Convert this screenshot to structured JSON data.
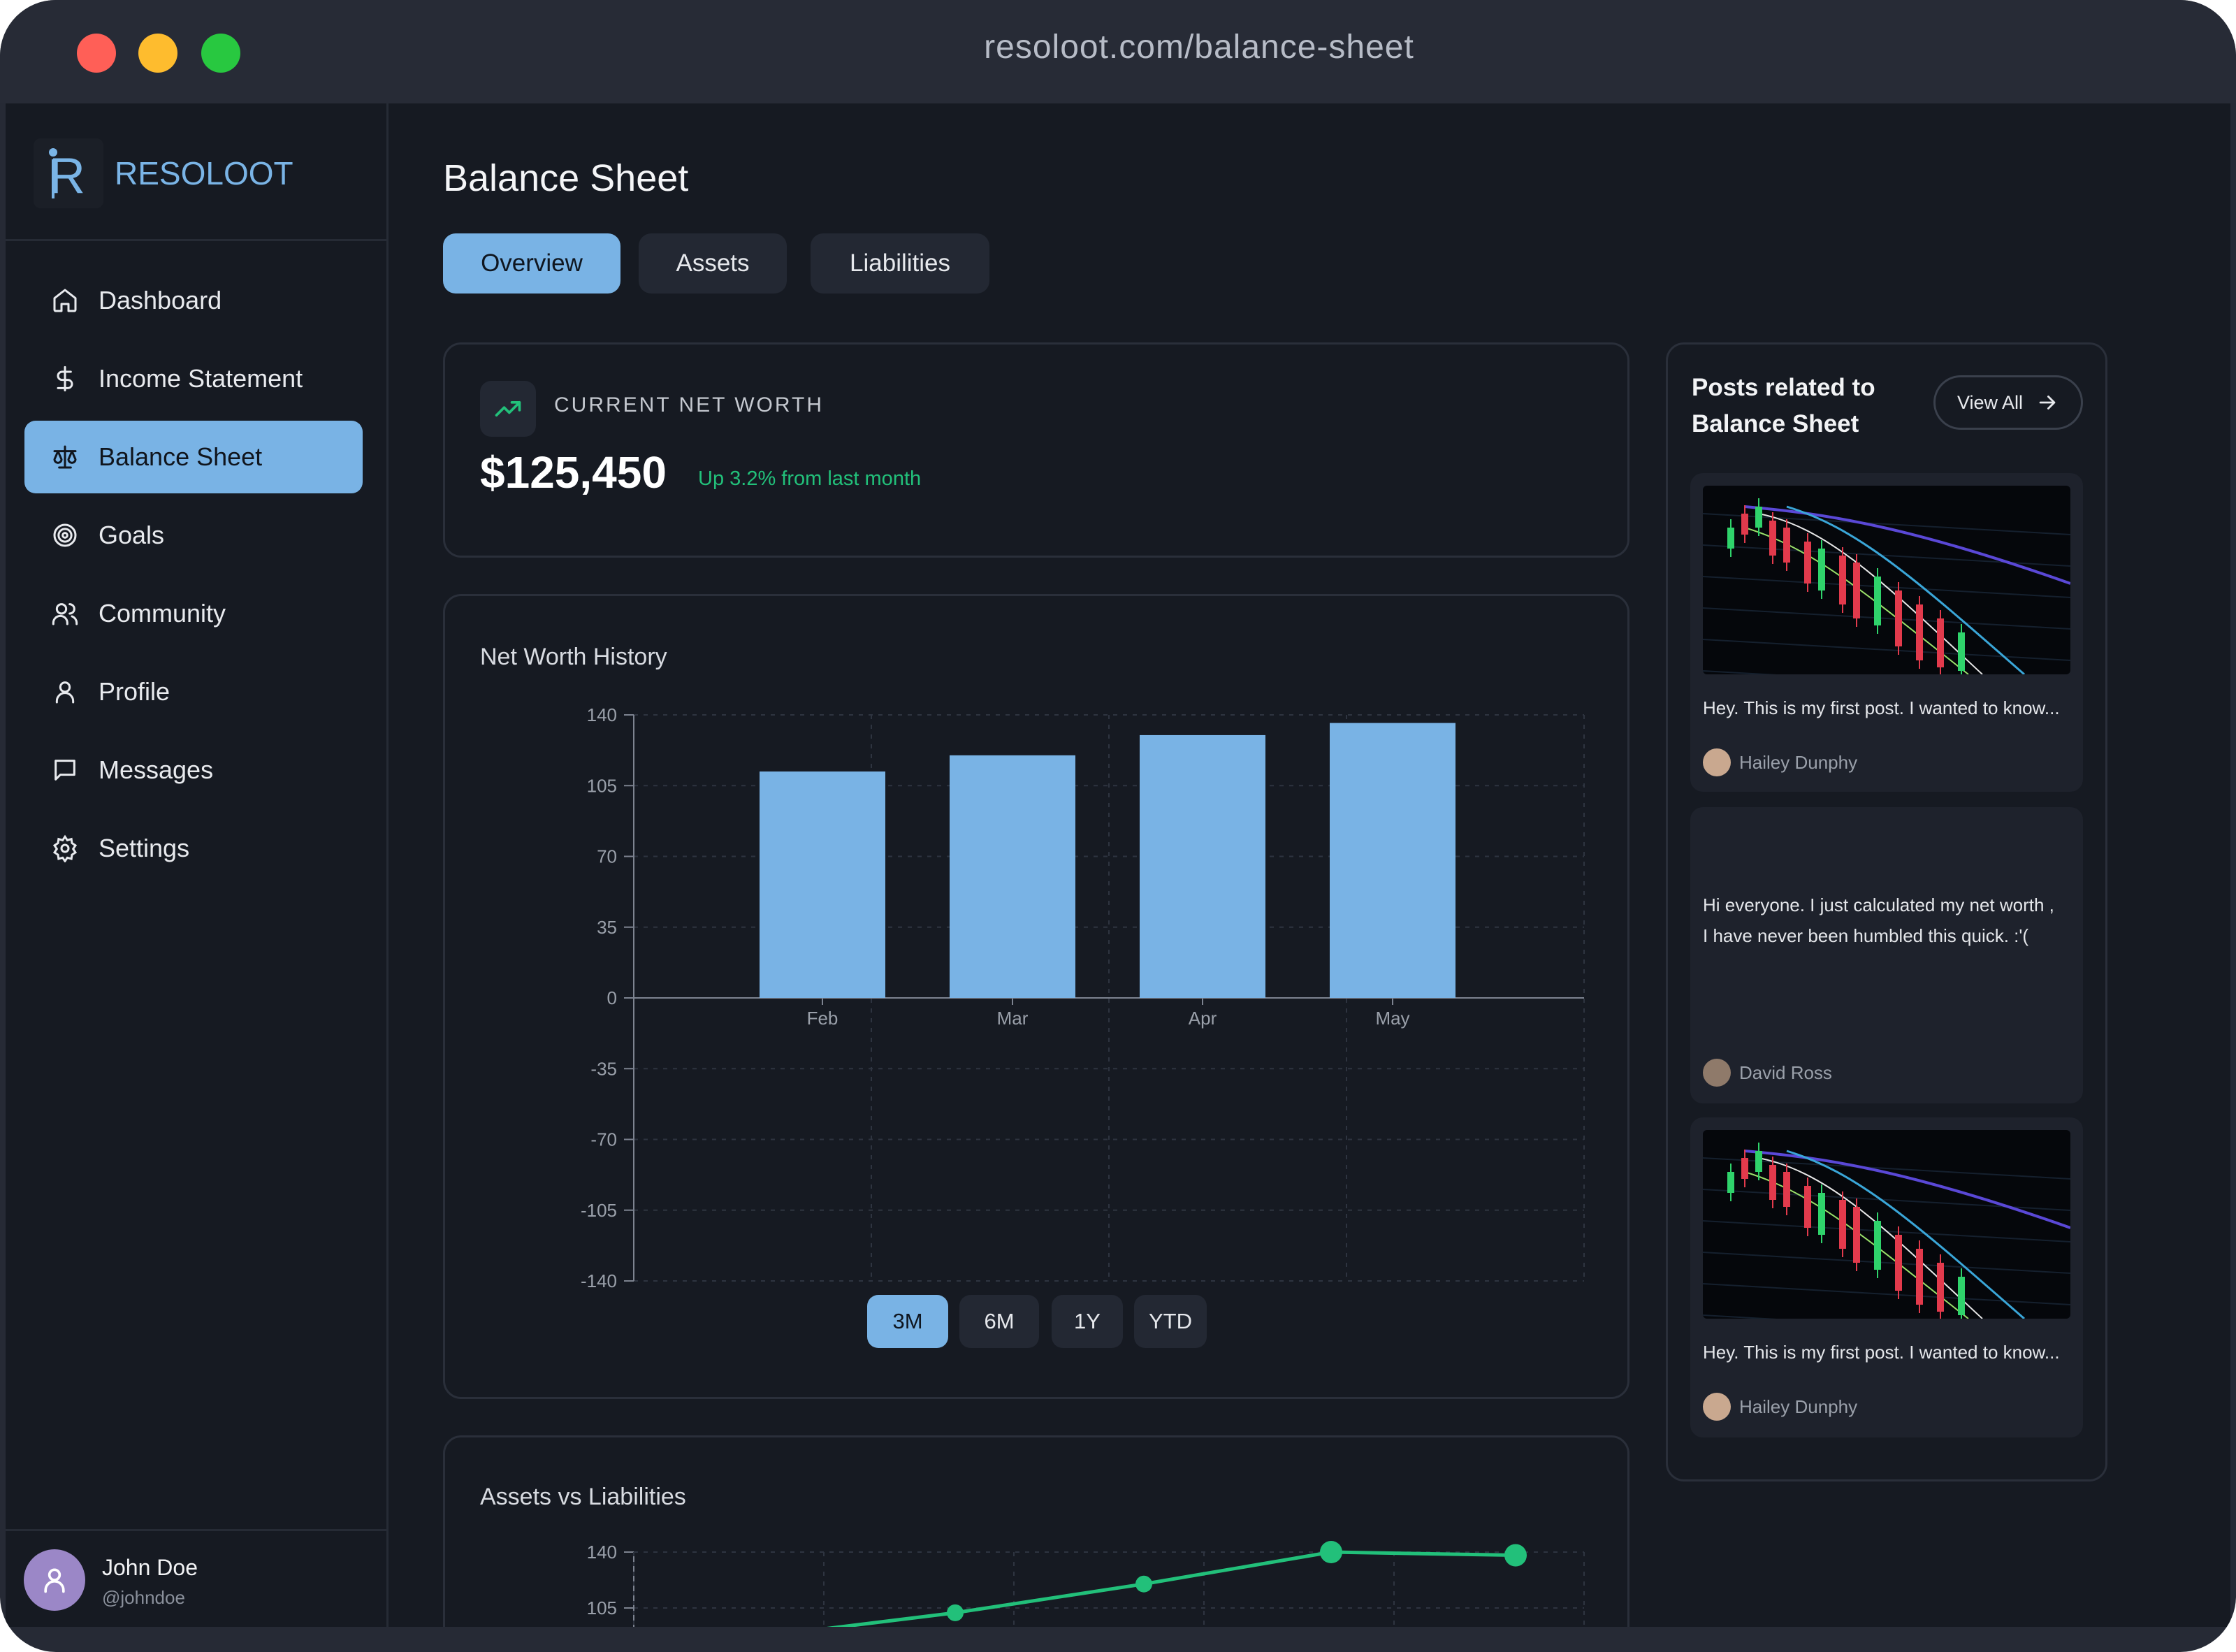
{
  "browser": {
    "url": "resoloot.com/balance-sheet",
    "lights": {
      "close": "#ff5f57",
      "minimize": "#febc2e",
      "maximize": "#28c840"
    }
  },
  "brand": {
    "name": "RESOLOOT",
    "accent": "#79b3e5"
  },
  "nav": {
    "items": [
      {
        "label": "Dashboard",
        "icon": "home-icon"
      },
      {
        "label": "Income Statement",
        "icon": "dollar-icon"
      },
      {
        "label": "Balance Sheet",
        "icon": "scale-icon",
        "active": true
      },
      {
        "label": "Goals",
        "icon": "target-icon"
      },
      {
        "label": "Community",
        "icon": "users-icon"
      },
      {
        "label": "Profile",
        "icon": "user-icon"
      },
      {
        "label": "Messages",
        "icon": "message-icon"
      },
      {
        "label": "Settings",
        "icon": "gear-icon"
      }
    ]
  },
  "user": {
    "name": "John Doe",
    "handle": "@johndoe"
  },
  "page": {
    "title": "Balance Sheet"
  },
  "tabs": [
    {
      "label": "Overview",
      "active": true
    },
    {
      "label": "Assets"
    },
    {
      "label": "Liabilities"
    }
  ],
  "net_worth": {
    "label": "CURRENT NET WORTH",
    "value": "$125,450",
    "delta": "Up 3.2% from last month",
    "delta_color": "#22c07a"
  },
  "history": {
    "title": "Net Worth History",
    "ranges": [
      {
        "label": "3M",
        "active": true
      },
      {
        "label": "6M"
      },
      {
        "label": "1Y"
      },
      {
        "label": "YTD"
      }
    ]
  },
  "assets_vs": {
    "title": "Assets vs Liabilities"
  },
  "chart_data": [
    {
      "type": "bar",
      "title": "Net Worth History",
      "categories": [
        "Feb",
        "Mar",
        "Apr",
        "May"
      ],
      "values": [
        112,
        120,
        130,
        136
      ],
      "ylim": [
        -140,
        140
      ],
      "yticks": [
        140,
        105,
        70,
        35,
        0,
        -35,
        -70,
        -105,
        -140
      ],
      "grid": true,
      "color": "#79b3e5"
    },
    {
      "type": "line",
      "title": "Assets vs Liabilities",
      "yticks": [
        140,
        105
      ],
      "values": [
        88,
        102,
        120,
        140,
        138
      ],
      "color": "#22c07a"
    }
  ],
  "posts": {
    "title": "Posts related to Balance Sheet",
    "view_all": "View All",
    "items": [
      {
        "text": "Hey. This is my first post. I wanted to know...",
        "author": "Hailey Dunphy",
        "image": "stock-chart-image"
      },
      {
        "text_lines": [
          "Hi everyone. I just calculated my net worth ,",
          "I have never been humbled this quick. :'("
        ],
        "author": "David Ross"
      },
      {
        "text": "Hey. This is my first post. I wanted to know...",
        "author": "Hailey Dunphy",
        "image": "stock-chart-image"
      }
    ]
  }
}
